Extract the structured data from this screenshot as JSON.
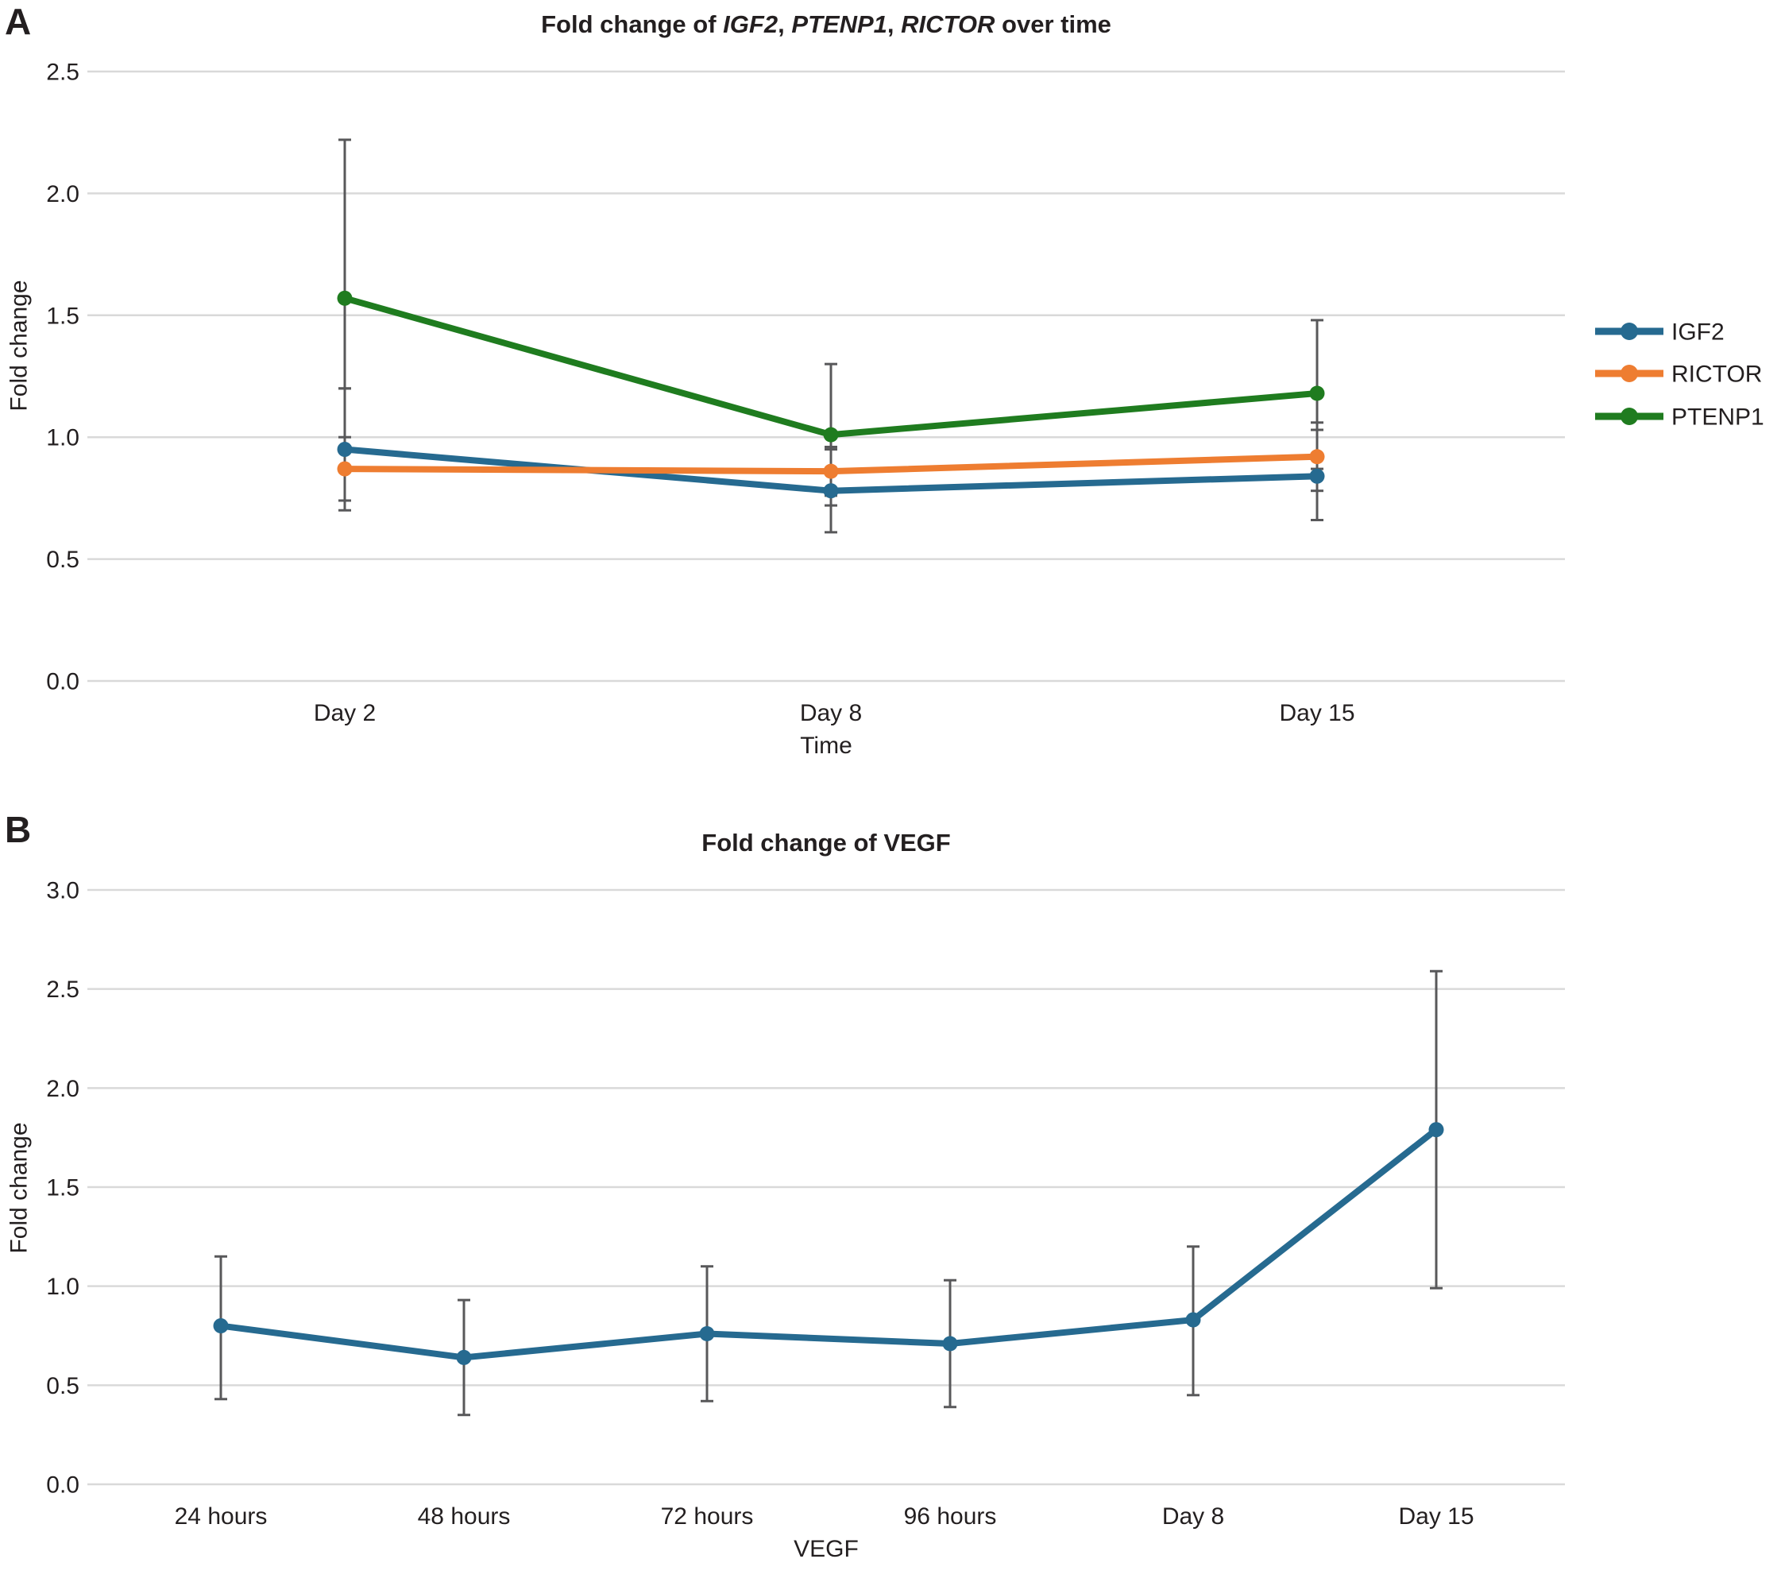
{
  "figure": {
    "background": "#ffffff",
    "text_color": "#231f20",
    "gridline_color": "#d9d9d9",
    "error_bar_color": "#58585a"
  },
  "chart_data": [
    {
      "id": "A",
      "type": "line",
      "panel_label": "A",
      "title": "Fold change of IGF2, PTENP1, RICTOR over time",
      "title_parts": [
        {
          "text": "Fold change of ",
          "italic": false
        },
        {
          "text": "IGF2",
          "italic": true
        },
        {
          "text": ", ",
          "italic": false
        },
        {
          "text": "PTENP1",
          "italic": true
        },
        {
          "text": ", ",
          "italic": false
        },
        {
          "text": "RICTOR",
          "italic": true
        },
        {
          "text": " over time",
          "italic": false
        }
      ],
      "xlabel": "Time",
      "ylabel": "Fold change",
      "categories": [
        "Day 2",
        "Day 8",
        "Day 15"
      ],
      "y_tick_labels": [
        "2.5",
        "2.0",
        "1.5",
        "1.0",
        "0.5",
        "0.0"
      ],
      "ylim": [
        0,
        2.5
      ],
      "grid": true,
      "legend_position": "right-center",
      "error_bars": true,
      "series": [
        {
          "name": "IGF2",
          "color": "#266a90",
          "values": [
            0.95,
            0.78,
            0.84
          ],
          "err_low": [
            0.7,
            0.61,
            0.66
          ],
          "err_high": [
            1.2,
            0.95,
            1.03
          ]
        },
        {
          "name": "RICTOR",
          "color": "#ee7d31",
          "values": [
            0.87,
            0.86,
            0.92
          ],
          "err_low": [
            0.74,
            0.76,
            0.78
          ],
          "err_high": [
            1.0,
            0.96,
            1.06
          ]
        },
        {
          "name": "PTENP1",
          "color": "#1f7c1f",
          "values": [
            1.57,
            1.01,
            1.18
          ],
          "err_low": [
            1.2,
            0.72,
            0.87
          ],
          "err_high": [
            2.22,
            1.3,
            1.48
          ]
        }
      ]
    },
    {
      "id": "B",
      "type": "line",
      "panel_label": "B",
      "title": "Fold change of VEGF",
      "xlabel": "VEGF",
      "ylabel": "Fold change",
      "categories": [
        "24 hours",
        "48 hours",
        "72 hours",
        "96 hours",
        "Day 8",
        "Day 15"
      ],
      "y_tick_labels": [
        "3.0",
        "2.5",
        "2.0",
        "1.5",
        "1.0",
        "0.5",
        "0.0"
      ],
      "ylim": [
        0,
        3.0
      ],
      "grid": true,
      "legend_position": "none",
      "error_bars": true,
      "series": [
        {
          "name": "VEGF",
          "color": "#266a90",
          "values": [
            0.8,
            0.64,
            0.76,
            0.71,
            0.83,
            1.79
          ],
          "err_low": [
            0.43,
            0.35,
            0.42,
            0.39,
            0.45,
            0.99
          ],
          "err_high": [
            1.15,
            0.93,
            1.1,
            1.03,
            1.2,
            2.59
          ]
        }
      ]
    }
  ]
}
